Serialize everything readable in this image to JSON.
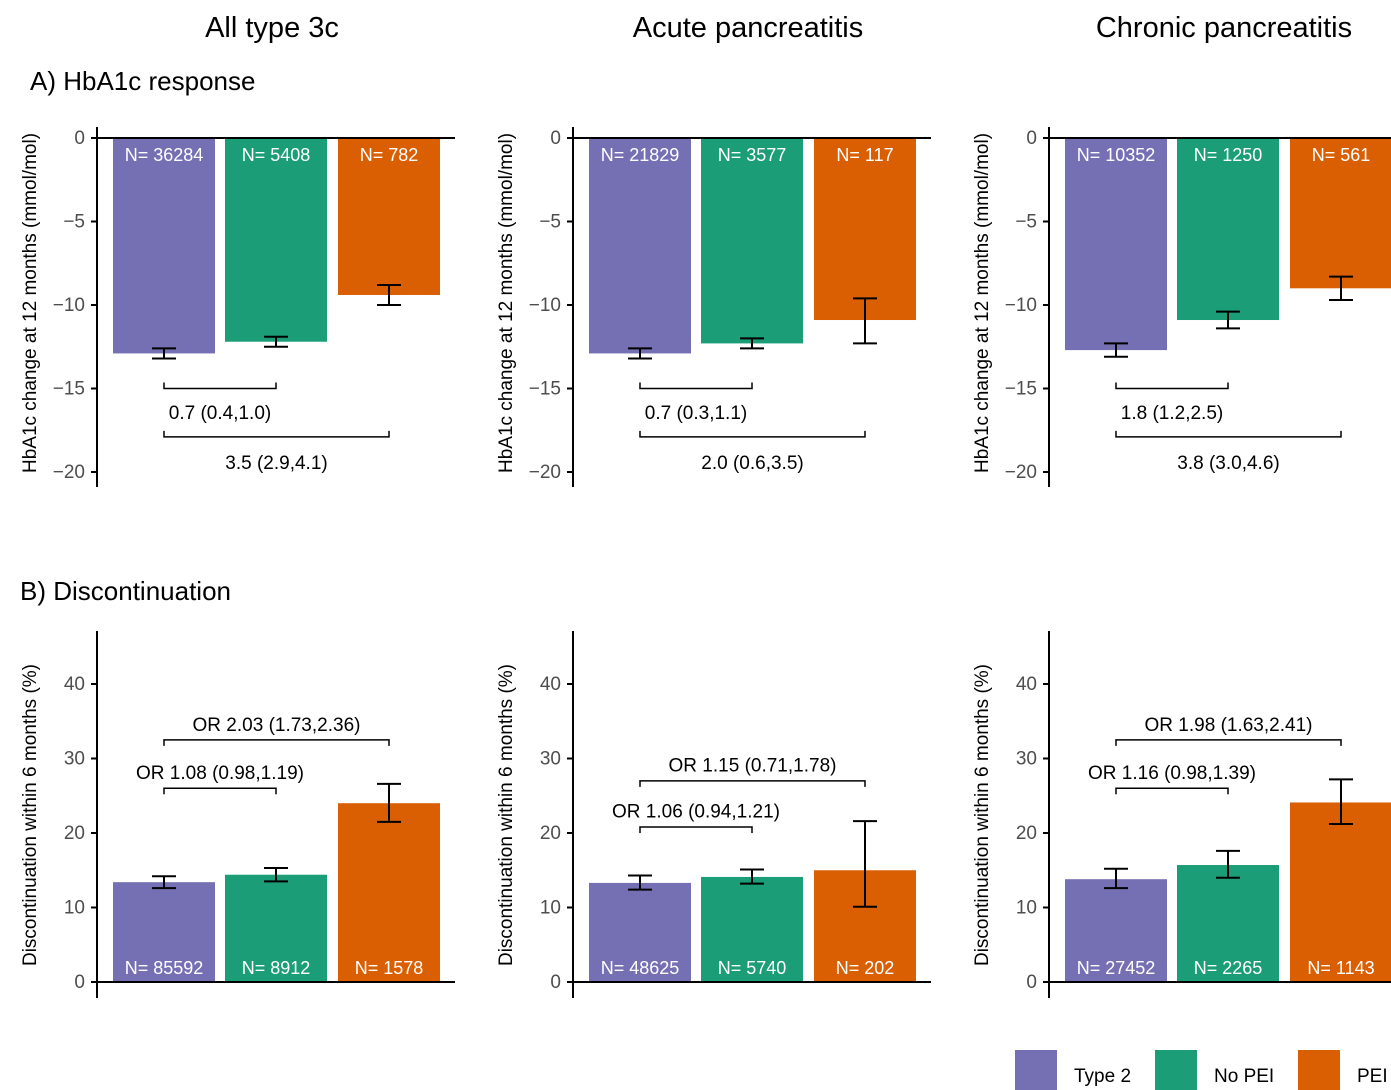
{
  "colors": {
    "type2": "#7570b3",
    "no_pei": "#1b9e77",
    "pei": "#d95f02"
  },
  "column_titles": [
    "All type 3c",
    "Acute pancreatitis",
    "Chronic pancreatitis"
  ],
  "section_titles": {
    "A": "A) HbA1c response",
    "B": "B) Discontinuation"
  },
  "legend": [
    {
      "label": "Type 2",
      "color": "#7570b3"
    },
    {
      "label": "No PEI",
      "color": "#1b9e77"
    },
    {
      "label": "PEI",
      "color": "#d95f02"
    }
  ],
  "chart_data": [
    {
      "type": "bar",
      "row": "A",
      "col": 0,
      "ylabel": "HbA1c change at 12 months (mmol/mol)",
      "ylim": [
        -20,
        0
      ],
      "yticks": [
        "0",
        "−5",
        "−10",
        "−15",
        "−20"
      ],
      "ytick_values": [
        0,
        -5,
        -10,
        -15,
        -20
      ],
      "categories": [
        "Type 2",
        "No PEI",
        "PEI"
      ],
      "values": [
        -12.9,
        -12.2,
        -9.4
      ],
      "error_low": [
        -13.2,
        -12.5,
        -10.0
      ],
      "error_high": [
        -12.6,
        -11.9,
        -8.8
      ],
      "n_labels": [
        "N= 36284",
        "N= 5408",
        "N= 782"
      ],
      "comparisons": [
        {
          "from": 0,
          "to": 1,
          "label": "0.7 (0.4,1.0)",
          "y": -15,
          "label_y": -16.4
        },
        {
          "from": 0,
          "to": 2,
          "label": "3.5 (2.9,4.1)",
          "y": -17.9,
          "label_y": -19.4
        }
      ]
    },
    {
      "type": "bar",
      "row": "A",
      "col": 1,
      "ylabel": "HbA1c change at 12 months (mmol/mol)",
      "ylim": [
        -20,
        0
      ],
      "yticks": [
        "0",
        "−5",
        "−10",
        "−15",
        "−20"
      ],
      "ytick_values": [
        0,
        -5,
        -10,
        -15,
        -20
      ],
      "categories": [
        "Type 2",
        "No PEI",
        "PEI"
      ],
      "values": [
        -12.9,
        -12.3,
        -10.9
      ],
      "error_low": [
        -13.2,
        -12.6,
        -12.3
      ],
      "error_high": [
        -12.6,
        -12.0,
        -9.6
      ],
      "n_labels": [
        "N= 21829",
        "N= 3577",
        "N= 117"
      ],
      "comparisons": [
        {
          "from": 0,
          "to": 1,
          "label": "0.7 (0.3,1.1)",
          "y": -15,
          "label_y": -16.4
        },
        {
          "from": 0,
          "to": 2,
          "label": "2.0 (0.6,3.5)",
          "y": -17.9,
          "label_y": -19.4
        }
      ]
    },
    {
      "type": "bar",
      "row": "A",
      "col": 2,
      "ylabel": "HbA1c change at 12 months (mmol/mol)",
      "ylim": [
        -20,
        0
      ],
      "yticks": [
        "0",
        "−5",
        "−10",
        "−15",
        "−20"
      ],
      "ytick_values": [
        0,
        -5,
        -10,
        -15,
        -20
      ],
      "categories": [
        "Type 2",
        "No PEI",
        "PEI"
      ],
      "values": [
        -12.7,
        -10.9,
        -9.0
      ],
      "error_low": [
        -13.1,
        -11.4,
        -9.7
      ],
      "error_high": [
        -12.3,
        -10.4,
        -8.3
      ],
      "n_labels": [
        "N= 10352",
        "N= 1250",
        "N= 561"
      ],
      "comparisons": [
        {
          "from": 0,
          "to": 1,
          "label": "1.8 (1.2,2.5)",
          "y": -15,
          "label_y": -16.4
        },
        {
          "from": 0,
          "to": 2,
          "label": "3.8 (3.0,4.6)",
          "y": -17.9,
          "label_y": -19.4
        }
      ]
    },
    {
      "type": "bar",
      "row": "B",
      "col": 0,
      "ylabel": "Discontinuation within 6 months (%)",
      "ylim": [
        0,
        40
      ],
      "yticks": [
        "0",
        "10",
        "20",
        "30",
        "40"
      ],
      "ytick_values": [
        0,
        10,
        20,
        30,
        40
      ],
      "categories": [
        "Type 2",
        "No PEI",
        "PEI"
      ],
      "values": [
        13.4,
        14.4,
        24.0
      ],
      "error_low": [
        12.6,
        13.5,
        21.5
      ],
      "error_high": [
        14.2,
        15.3,
        26.6
      ],
      "n_labels": [
        "N= 85592",
        "N= 8912",
        "N= 1578"
      ],
      "comparisons": [
        {
          "from": 0,
          "to": 1,
          "label": "OR 1.08 (0.98,1.19)",
          "y": 26,
          "label_y": 28.2
        },
        {
          "from": 0,
          "to": 2,
          "label": "OR 2.03 (1.73,2.36)",
          "y": 32.5,
          "label_y": 34.6
        }
      ]
    },
    {
      "type": "bar",
      "row": "B",
      "col": 1,
      "ylabel": "Discontinuation within 6 months (%)",
      "ylim": [
        0,
        40
      ],
      "yticks": [
        "0",
        "10",
        "20",
        "30",
        "40"
      ],
      "ytick_values": [
        0,
        10,
        20,
        30,
        40
      ],
      "categories": [
        "Type 2",
        "No PEI",
        "PEI"
      ],
      "values": [
        13.3,
        14.1,
        15.0
      ],
      "error_low": [
        12.4,
        13.2,
        10.1
      ],
      "error_high": [
        14.3,
        15.1,
        21.6
      ],
      "n_labels": [
        "N= 48625",
        "N= 5740",
        "N= 202"
      ],
      "comparisons": [
        {
          "from": 0,
          "to": 1,
          "label": "OR 1.06 (0.94,1.21)",
          "y": 20.8,
          "label_y": 23.0
        },
        {
          "from": 0,
          "to": 2,
          "label": "OR 1.15 (0.71,1.78)",
          "y": 27,
          "label_y": 29.2
        }
      ]
    },
    {
      "type": "bar",
      "row": "B",
      "col": 2,
      "ylabel": "Discontinuation within 6 months (%)",
      "ylim": [
        0,
        40
      ],
      "yticks": [
        "0",
        "10",
        "20",
        "30",
        "40"
      ],
      "ytick_values": [
        0,
        10,
        20,
        30,
        40
      ],
      "categories": [
        "Type 2",
        "No PEI",
        "PEI"
      ],
      "values": [
        13.8,
        15.7,
        24.1
      ],
      "error_low": [
        12.6,
        14.0,
        21.2
      ],
      "error_high": [
        15.2,
        17.6,
        27.2
      ],
      "n_labels": [
        "N= 27452",
        "N= 2265",
        "N= 1143"
      ],
      "comparisons": [
        {
          "from": 0,
          "to": 1,
          "label": "OR 1.16 (0.98,1.39)",
          "y": 26,
          "label_y": 28.2
        },
        {
          "from": 0,
          "to": 2,
          "label": "OR 1.98 (1.63,2.41)",
          "y": 32.5,
          "label_y": 34.6
        }
      ]
    }
  ]
}
